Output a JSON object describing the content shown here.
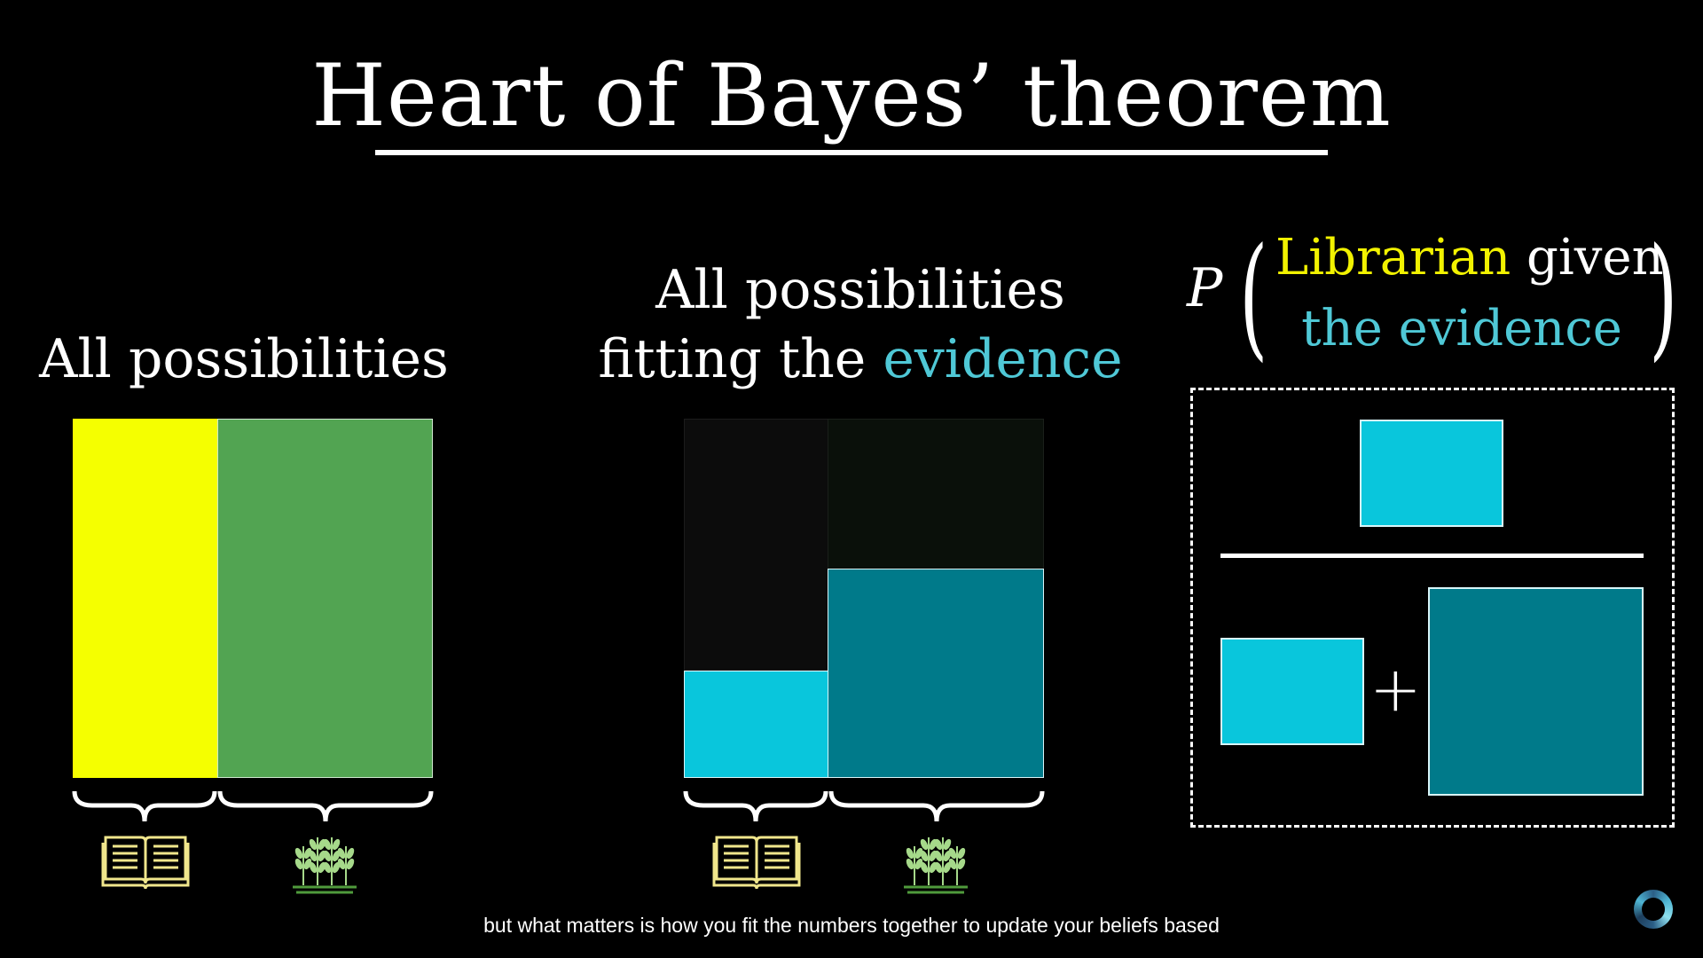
{
  "title": "Heart of Bayes’ theorem",
  "left_panel": {
    "label": "All possibilities"
  },
  "middle_panel": {
    "label_line1": "All possibilities",
    "label_line2_prefix": "fitting the ",
    "label_line2_highlight": "evidence"
  },
  "right_panel": {
    "p_symbol": "P",
    "top_highlight": "Librarian",
    "top_rest": " given",
    "bottom": "the evidence",
    "plus": "+"
  },
  "icons": [
    "book-icon",
    "wheat-icon"
  ],
  "colors": {
    "librarian": "#f5ff00",
    "farmer": "#52a452",
    "librarian_evidence": "#09c6dc",
    "farmer_evidence": "#007a8a",
    "dim_librarian": "#0c0c0c",
    "dim_farmer": "#0a100a",
    "evidence_text": "#4fc8d6"
  },
  "caption": "but what matters is how you fit the numbers together to update your beliefs based"
}
